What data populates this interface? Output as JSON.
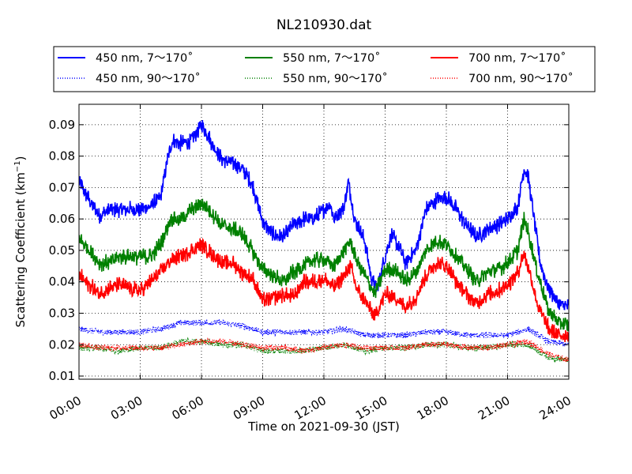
{
  "chart_data": {
    "type": "line",
    "title": "NL210930.dat",
    "xlabel": "Time on 2021-09-30 (JST)",
    "ylabel_text": "Scattering Coefficient (km",
    "ylabel_sup": "−1",
    "ylabel_close": ")",
    "xlim": [
      "00:00",
      "24:00"
    ],
    "ylim": [
      0.009,
      0.0965
    ],
    "x_ticks": [
      "00:00",
      "03:00",
      "06:00",
      "09:00",
      "12:00",
      "15:00",
      "18:00",
      "21:00",
      "24:00"
    ],
    "y_ticks": [
      0.01,
      0.02,
      0.03,
      0.04,
      0.05,
      0.06,
      0.07,
      0.08,
      0.09
    ],
    "grid": "dotted",
    "legend_position": "top (above plot)",
    "series": [
      {
        "name": "450 nm, 7～170˚",
        "color": "#0000ff",
        "style": "solid",
        "points": [
          [
            0,
            0.072
          ],
          [
            0.5,
            0.066
          ],
          [
            1,
            0.061
          ],
          [
            1.5,
            0.063
          ],
          [
            2,
            0.063
          ],
          [
            2.5,
            0.063
          ],
          [
            3,
            0.063
          ],
          [
            3.5,
            0.064
          ],
          [
            4,
            0.067
          ],
          [
            4.3,
            0.078
          ],
          [
            4.6,
            0.085
          ],
          [
            5,
            0.084
          ],
          [
            5.5,
            0.085
          ],
          [
            6,
            0.09
          ],
          [
            6.3,
            0.087
          ],
          [
            6.6,
            0.083
          ],
          [
            7,
            0.079
          ],
          [
            7.5,
            0.078
          ],
          [
            8,
            0.076
          ],
          [
            8.5,
            0.071
          ],
          [
            9,
            0.059
          ],
          [
            9.5,
            0.055
          ],
          [
            10,
            0.054
          ],
          [
            10.5,
            0.058
          ],
          [
            11,
            0.06
          ],
          [
            11.5,
            0.06
          ],
          [
            12,
            0.063
          ],
          [
            12.3,
            0.065
          ],
          [
            12.5,
            0.06
          ],
          [
            13,
            0.064
          ],
          [
            13.2,
            0.072
          ],
          [
            13.5,
            0.06
          ],
          [
            14,
            0.053
          ],
          [
            14.3,
            0.042
          ],
          [
            14.6,
            0.038
          ],
          [
            15,
            0.048
          ],
          [
            15.3,
            0.055
          ],
          [
            15.6,
            0.052
          ],
          [
            16,
            0.046
          ],
          [
            16.5,
            0.05
          ],
          [
            17,
            0.063
          ],
          [
            17.5,
            0.066
          ],
          [
            18,
            0.067
          ],
          [
            18.5,
            0.063
          ],
          [
            19,
            0.058
          ],
          [
            19.5,
            0.054
          ],
          [
            20,
            0.057
          ],
          [
            20.5,
            0.058
          ],
          [
            21,
            0.06
          ],
          [
            21.5,
            0.064
          ],
          [
            21.8,
            0.076
          ],
          [
            22,
            0.074
          ],
          [
            22.3,
            0.06
          ],
          [
            22.6,
            0.046
          ],
          [
            23,
            0.038
          ],
          [
            23.5,
            0.033
          ],
          [
            24,
            0.032
          ]
        ]
      },
      {
        "name": "450 nm, 90～170˚",
        "color": "#0000ff",
        "style": "dotted",
        "points": [
          [
            0,
            0.025
          ],
          [
            1,
            0.024
          ],
          [
            2,
            0.024
          ],
          [
            3,
            0.024
          ],
          [
            4,
            0.025
          ],
          [
            5,
            0.027
          ],
          [
            6,
            0.027
          ],
          [
            7,
            0.027
          ],
          [
            8,
            0.026
          ],
          [
            9,
            0.024
          ],
          [
            10,
            0.024
          ],
          [
            11,
            0.024
          ],
          [
            12,
            0.024
          ],
          [
            13,
            0.025
          ],
          [
            14,
            0.023
          ],
          [
            15,
            0.023
          ],
          [
            16,
            0.023
          ],
          [
            17,
            0.024
          ],
          [
            18,
            0.024
          ],
          [
            19,
            0.023
          ],
          [
            20,
            0.023
          ],
          [
            21,
            0.023
          ],
          [
            22,
            0.025
          ],
          [
            23,
            0.021
          ],
          [
            24,
            0.02
          ]
        ]
      },
      {
        "name": "550 nm, 7～170˚",
        "color": "#008000",
        "style": "solid",
        "points": [
          [
            0,
            0.054
          ],
          [
            0.5,
            0.05
          ],
          [
            1,
            0.046
          ],
          [
            1.5,
            0.046
          ],
          [
            2,
            0.048
          ],
          [
            2.5,
            0.048
          ],
          [
            3,
            0.048
          ],
          [
            3.5,
            0.048
          ],
          [
            4,
            0.052
          ],
          [
            4.5,
            0.06
          ],
          [
            5,
            0.06
          ],
          [
            5.5,
            0.063
          ],
          [
            6,
            0.065
          ],
          [
            6.5,
            0.062
          ],
          [
            7,
            0.058
          ],
          [
            7.5,
            0.057
          ],
          [
            8,
            0.055
          ],
          [
            8.5,
            0.05
          ],
          [
            9,
            0.044
          ],
          [
            9.5,
            0.042
          ],
          [
            10,
            0.04
          ],
          [
            10.5,
            0.043
          ],
          [
            11,
            0.045
          ],
          [
            11.5,
            0.047
          ],
          [
            12,
            0.047
          ],
          [
            12.5,
            0.045
          ],
          [
            13,
            0.05
          ],
          [
            13.3,
            0.053
          ],
          [
            13.6,
            0.047
          ],
          [
            14,
            0.042
          ],
          [
            14.5,
            0.036
          ],
          [
            15,
            0.044
          ],
          [
            15.5,
            0.044
          ],
          [
            16,
            0.04
          ],
          [
            16.5,
            0.043
          ],
          [
            17,
            0.05
          ],
          [
            17.5,
            0.053
          ],
          [
            18,
            0.052
          ],
          [
            18.5,
            0.048
          ],
          [
            19,
            0.044
          ],
          [
            19.5,
            0.04
          ],
          [
            20,
            0.043
          ],
          [
            20.5,
            0.044
          ],
          [
            21,
            0.046
          ],
          [
            21.5,
            0.05
          ],
          [
            21.8,
            0.06
          ],
          [
            22,
            0.056
          ],
          [
            22.5,
            0.042
          ],
          [
            23,
            0.031
          ],
          [
            23.5,
            0.027
          ],
          [
            24,
            0.026
          ]
        ]
      },
      {
        "name": "550 nm, 90～170˚",
        "color": "#008000",
        "style": "dotted",
        "points": [
          [
            0,
            0.019
          ],
          [
            1,
            0.019
          ],
          [
            2,
            0.018
          ],
          [
            3,
            0.019
          ],
          [
            4,
            0.019
          ],
          [
            5,
            0.021
          ],
          [
            6,
            0.021
          ],
          [
            7,
            0.02
          ],
          [
            8,
            0.02
          ],
          [
            9,
            0.018
          ],
          [
            10,
            0.018
          ],
          [
            11,
            0.018
          ],
          [
            12,
            0.019
          ],
          [
            13,
            0.02
          ],
          [
            14,
            0.018
          ],
          [
            15,
            0.019
          ],
          [
            16,
            0.019
          ],
          [
            17,
            0.02
          ],
          [
            18,
            0.02
          ],
          [
            19,
            0.019
          ],
          [
            20,
            0.019
          ],
          [
            21,
            0.02
          ],
          [
            22,
            0.02
          ],
          [
            23,
            0.016
          ],
          [
            24,
            0.015
          ]
        ]
      },
      {
        "name": "700 nm, 7～170˚",
        "color": "#ff0000",
        "style": "solid",
        "points": [
          [
            0,
            0.042
          ],
          [
            0.5,
            0.039
          ],
          [
            1,
            0.036
          ],
          [
            1.5,
            0.038
          ],
          [
            2,
            0.039
          ],
          [
            2.5,
            0.038
          ],
          [
            3,
            0.037
          ],
          [
            3.5,
            0.04
          ],
          [
            4,
            0.043
          ],
          [
            4.5,
            0.047
          ],
          [
            5,
            0.048
          ],
          [
            5.5,
            0.05
          ],
          [
            6,
            0.052
          ],
          [
            6.5,
            0.049
          ],
          [
            7,
            0.046
          ],
          [
            7.5,
            0.046
          ],
          [
            8,
            0.043
          ],
          [
            8.5,
            0.041
          ],
          [
            9,
            0.034
          ],
          [
            9.5,
            0.035
          ],
          [
            10,
            0.036
          ],
          [
            10.5,
            0.035
          ],
          [
            11,
            0.04
          ],
          [
            11.5,
            0.04
          ],
          [
            12,
            0.041
          ],
          [
            12.5,
            0.038
          ],
          [
            13,
            0.042
          ],
          [
            13.3,
            0.045
          ],
          [
            13.6,
            0.038
          ],
          [
            14,
            0.034
          ],
          [
            14.5,
            0.029
          ],
          [
            15,
            0.036
          ],
          [
            15.5,
            0.035
          ],
          [
            16,
            0.032
          ],
          [
            16.5,
            0.035
          ],
          [
            17,
            0.042
          ],
          [
            17.5,
            0.046
          ],
          [
            18,
            0.045
          ],
          [
            18.5,
            0.04
          ],
          [
            19,
            0.036
          ],
          [
            19.5,
            0.033
          ],
          [
            20,
            0.036
          ],
          [
            20.5,
            0.037
          ],
          [
            21,
            0.039
          ],
          [
            21.5,
            0.043
          ],
          [
            21.8,
            0.049
          ],
          [
            22,
            0.045
          ],
          [
            22.5,
            0.032
          ],
          [
            23,
            0.025
          ],
          [
            23.5,
            0.023
          ],
          [
            24,
            0.023
          ]
        ]
      },
      {
        "name": "700 nm, 90～170˚",
        "color": "#ff0000",
        "style": "dotted",
        "points": [
          [
            0,
            0.02
          ],
          [
            1,
            0.019
          ],
          [
            2,
            0.019
          ],
          [
            3,
            0.019
          ],
          [
            4,
            0.019
          ],
          [
            5,
            0.02
          ],
          [
            6,
            0.021
          ],
          [
            7,
            0.021
          ],
          [
            8,
            0.02
          ],
          [
            9,
            0.019
          ],
          [
            10,
            0.019
          ],
          [
            11,
            0.018
          ],
          [
            12,
            0.019
          ],
          [
            13,
            0.02
          ],
          [
            14,
            0.019
          ],
          [
            15,
            0.019
          ],
          [
            16,
            0.019
          ],
          [
            17,
            0.02
          ],
          [
            18,
            0.02
          ],
          [
            19,
            0.019
          ],
          [
            20,
            0.019
          ],
          [
            21,
            0.02
          ],
          [
            22,
            0.021
          ],
          [
            23,
            0.017
          ],
          [
            24,
            0.015
          ]
        ]
      }
    ]
  }
}
